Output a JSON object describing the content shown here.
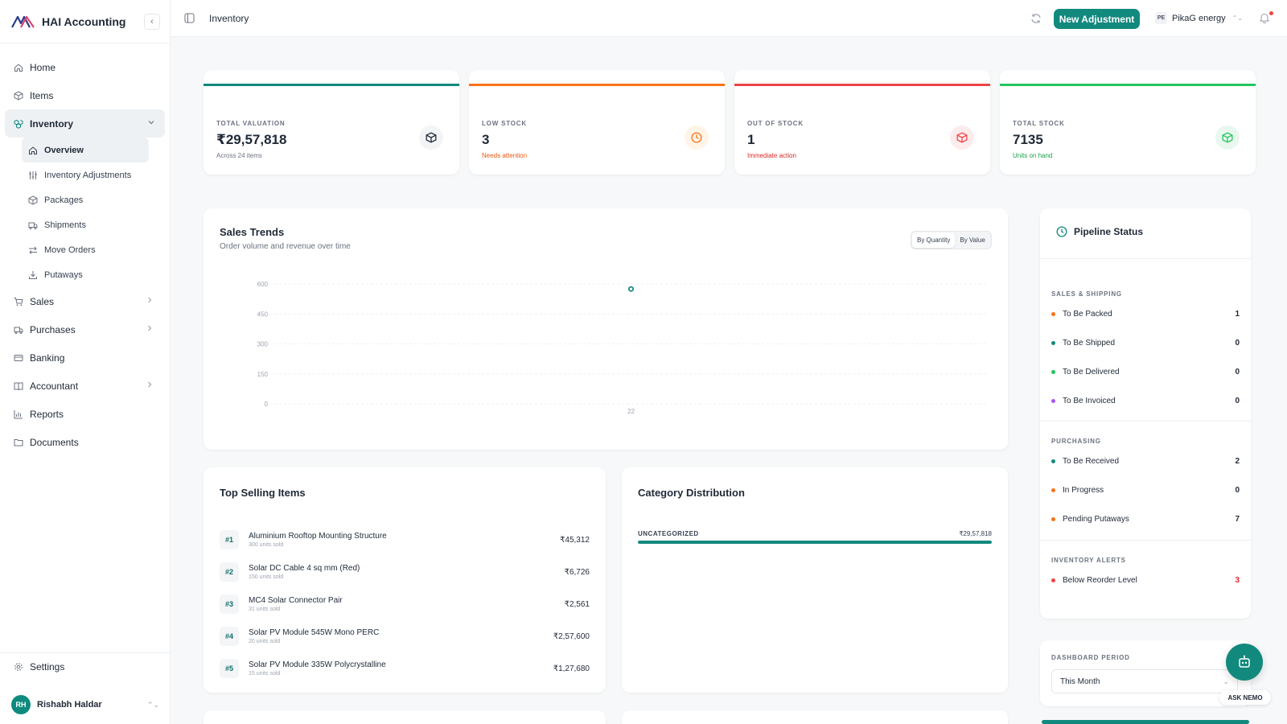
{
  "brand": {
    "name": "HAI Accounting"
  },
  "sidebar": {
    "items": [
      {
        "label": "Home",
        "icon": "home-icon"
      },
      {
        "label": "Items",
        "icon": "box-icon"
      },
      {
        "label": "Inventory",
        "icon": "boxes-icon",
        "expanded": true
      },
      {
        "label": "Sales",
        "icon": "cart-icon"
      },
      {
        "label": "Purchases",
        "icon": "truck-icon"
      },
      {
        "label": "Banking",
        "icon": "card-icon"
      },
      {
        "label": "Accountant",
        "icon": "book-icon"
      },
      {
        "label": "Reports",
        "icon": "chart-icon"
      },
      {
        "label": "Documents",
        "icon": "folder-icon"
      }
    ],
    "inventory_sub": [
      {
        "label": "Overview",
        "icon": "home-icon",
        "active": true
      },
      {
        "label": "Inventory Adjustments",
        "icon": "sliders-icon"
      },
      {
        "label": "Packages",
        "icon": "package-icon"
      },
      {
        "label": "Shipments",
        "icon": "truck-icon"
      },
      {
        "label": "Move Orders",
        "icon": "arrows-icon"
      },
      {
        "label": "Putaways",
        "icon": "download-icon"
      }
    ],
    "settings_label": "Settings",
    "user": {
      "initials": "RH",
      "name": "Rishabh Haldar"
    }
  },
  "header": {
    "title": "Inventory",
    "new_button": "New Adjustment",
    "org": {
      "badge": "PE",
      "name": "PikaG energy"
    }
  },
  "stats": [
    {
      "label": "TOTAL VALUATION",
      "value": "₹29,57,818",
      "sub": "Across 24 items",
      "color": "#12897d",
      "sub_color": "#6b7280"
    },
    {
      "label": "LOW STOCK",
      "value": "3",
      "sub": "Needs attention",
      "color": "#f97316",
      "sub_color": "#ea580c"
    },
    {
      "label": "OUT OF STOCK",
      "value": "1",
      "sub": "Immediate action",
      "color": "#ef4444",
      "sub_color": "#dc2626"
    },
    {
      "label": "TOTAL STOCK",
      "value": "7135",
      "sub": "Units on hand",
      "color": "#22c55e",
      "sub_color": "#16a34a"
    }
  ],
  "sales_trends": {
    "title": "Sales Trends",
    "subtitle": "Order volume and revenue over time",
    "toggle": [
      "By Quantity",
      "By Value"
    ]
  },
  "chart_data": {
    "type": "line",
    "x": [
      "22"
    ],
    "series": [
      {
        "values": [
          575
        ]
      }
    ],
    "yticks": [
      0,
      150,
      300,
      450,
      600
    ],
    "ylim": [
      0,
      600
    ],
    "grid": true,
    "color": "#12897d"
  },
  "pipeline": {
    "title": "Pipeline Status",
    "sections": [
      {
        "label": "SALES & SHIPPING",
        "rows": [
          {
            "label": "To Be Packed",
            "count": "1",
            "dot": "#f97316"
          },
          {
            "label": "To Be Shipped",
            "count": "0",
            "dot": "#12897d"
          },
          {
            "label": "To Be Delivered",
            "count": "0",
            "dot": "#22c55e"
          },
          {
            "label": "To Be Invoiced",
            "count": "0",
            "dot": "#a855f7"
          }
        ]
      },
      {
        "label": "PURCHASING",
        "rows": [
          {
            "label": "To Be Received",
            "count": "2",
            "dot": "#12897d"
          },
          {
            "label": "In Progress",
            "count": "0",
            "dot": "#f97316"
          },
          {
            "label": "Pending Putaways",
            "count": "7",
            "dot": "#f97316"
          }
        ]
      },
      {
        "label": "INVENTORY ALERTS",
        "rows": [
          {
            "label": "Below Reorder Level",
            "count": "3",
            "dot": "#ef4444",
            "count_color": "#dc2626"
          }
        ]
      }
    ]
  },
  "top_selling": {
    "title": "Top Selling Items",
    "items": [
      {
        "rank": "#1",
        "name": "Aluminium Rooftop Mounting Structure",
        "sold": "300 units sold",
        "amount": "₹45,312"
      },
      {
        "rank": "#2",
        "name": "Solar DC Cable 4 sq mm (Red)",
        "sold": "150 units sold",
        "amount": "₹6,726"
      },
      {
        "rank": "#3",
        "name": "MC4 Solar Connector Pair",
        "sold": "31 units sold",
        "amount": "₹2,561"
      },
      {
        "rank": "#4",
        "name": "Solar PV Module 545W Mono PERC",
        "sold": "20 units sold",
        "amount": "₹2,57,600"
      },
      {
        "rank": "#5",
        "name": "Solar PV Module 335W Polycrystalline",
        "sold": "15 units sold",
        "amount": "₹1,27,680"
      }
    ]
  },
  "category": {
    "title": "Category Distribution",
    "label": "UNCATEGORIZED",
    "value": "₹29,57,818",
    "share": 1.0
  },
  "period": {
    "label": "DASHBOARD PERIOD",
    "selected": "This Month"
  },
  "assistant": {
    "label": "ASK NEMO"
  }
}
